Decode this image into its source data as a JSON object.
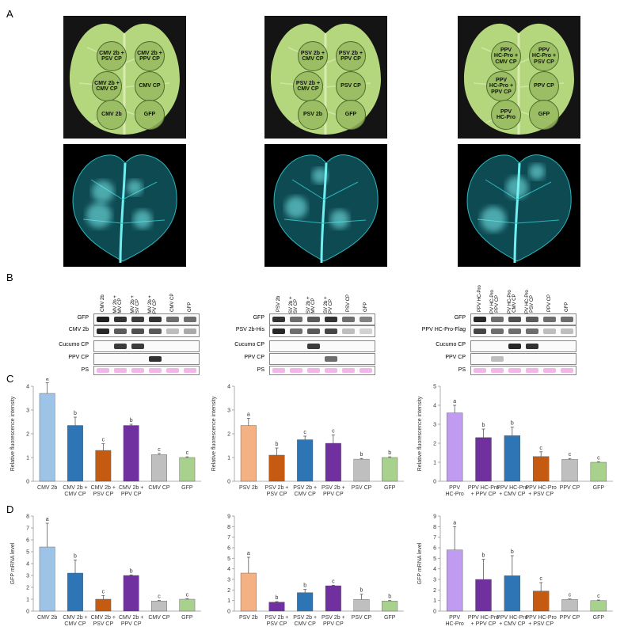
{
  "panels": {
    "A": "A",
    "B": "B",
    "C": "C",
    "D": "D"
  },
  "leaf_sets": [
    {
      "spots": [
        "CMV 2b +\nPSV CP",
        "CMV 2b +\nPPV CP",
        "CMV 2b +\nCMV CP",
        "CMV CP",
        "CMV 2b",
        "GFP"
      ]
    },
    {
      "spots": [
        "PSV 2b +\nCMV CP",
        "PSV 2b +\nPPV CP",
        "PSV 2b +\nCMV CP",
        "PSV CP",
        "PSV 2b",
        "GFP"
      ]
    },
    {
      "spots": [
        "PPV\nHC-Pro +\nCMV CP",
        "PPV\nHC-Pro +\nPSV CP",
        "PPV\nHC-Pro +\nPPV CP",
        "PPV CP",
        "PPV\nHC-Pro",
        "GFP"
      ]
    }
  ],
  "blots": [
    {
      "lanes": [
        "CMV 2b",
        "CMV 2b +\nCMV CP",
        "CMV 2b +\nPSV CP",
        "CMV 2b +\nPPV CP",
        "CMV CP",
        "GFP"
      ],
      "rows": [
        "GFP",
        "CMV 2b",
        "Cucumo CP",
        "PPV CP",
        "PS"
      ]
    },
    {
      "lanes": [
        "PSV 2b",
        "PSV 2b +\nPSV CP",
        "PSV 2b +\nCMV CP",
        "PSV 2b +\nPPV CP",
        "PSV CP",
        "GFP"
      ],
      "rows": [
        "GFP",
        "PSV 2b-His",
        "Cucumo CP",
        "PPV CP",
        "PS"
      ]
    },
    {
      "lanes": [
        "PPV HC-Pro",
        "PPV HC-Pro\n+ PPV CP",
        "PPV HC-Pro\n+ CMV CP",
        "PPV HC-Pro\n+ PSV CP",
        "PPV CP",
        "GFP"
      ],
      "rows": [
        "GFP",
        "PPV HC-Pro-Flag",
        "Cucumo CP",
        "PPV CP",
        "PS"
      ]
    }
  ],
  "colors": {
    "light_blue": "#9dc3e6",
    "blue": "#2e75b6",
    "orange": "#c55a11",
    "purple": "#7030a0",
    "grey": "#bfbfbf",
    "green": "#a9d18e",
    "peach": "#f4b183",
    "lavender": "#c09cf0",
    "ps_band": "#f3b6e8"
  },
  "chart_data": [
    {
      "type": "bar",
      "ylabel": "Relative fluorescence intensity",
      "ylim": [
        0,
        4
      ],
      "yticks": [
        0,
        1,
        2,
        3,
        4
      ],
      "categories": [
        "CMV 2b",
        "CMV 2b +\nCMV CP",
        "CMV 2b +\nPSV CP",
        "CMV 2b +\nPPV CP",
        "CMV CP",
        "GFP"
      ],
      "values": [
        3.7,
        2.35,
        1.3,
        2.35,
        1.12,
        1.0
      ],
      "errors": [
        0.45,
        0.35,
        0.28,
        0.05,
        0.05,
        0.03
      ],
      "letters": [
        "a",
        "b",
        "c",
        "b",
        "c",
        "c"
      ],
      "bar_colors": [
        "#9dc3e6",
        "#2e75b6",
        "#c55a11",
        "#7030a0",
        "#bfbfbf",
        "#a9d18e"
      ]
    },
    {
      "type": "bar",
      "ylabel": "Relative fluorescence intensity",
      "ylim": [
        0,
        4
      ],
      "yticks": [
        0,
        1,
        2,
        3,
        4
      ],
      "categories": [
        "PSV 2b",
        "PSV 2b +\nPSV CP",
        "PSV 2b +\nCMV CP",
        "PSV 2b +\nPPV CP",
        "PSV CP",
        "GFP"
      ],
      "values": [
        2.35,
        1.1,
        1.75,
        1.6,
        0.93,
        1.0
      ],
      "errors": [
        0.3,
        0.3,
        0.15,
        0.35,
        0.03,
        0.03
      ],
      "letters": [
        "a",
        "b",
        "c",
        "c",
        "b",
        "b"
      ],
      "bar_colors": [
        "#f4b183",
        "#c55a11",
        "#2e75b6",
        "#7030a0",
        "#bfbfbf",
        "#a9d18e"
      ]
    },
    {
      "type": "bar",
      "ylabel": "Relative fluorescence intensity",
      "ylim": [
        0,
        5
      ],
      "yticks": [
        0,
        1,
        2,
        3,
        4,
        5
      ],
      "categories": [
        "PPV\nHC-Pro",
        "PPV HC-Pro\n+ PPV CP",
        "PPV HC-Pro\n+ CMV CP",
        "PPV HC-Pro\n+ PSV CP",
        "PPV CP",
        "GFP"
      ],
      "values": [
        3.6,
        2.3,
        2.4,
        1.3,
        1.15,
        1.0
      ],
      "errors": [
        0.4,
        0.45,
        0.45,
        0.25,
        0.05,
        0.03
      ],
      "letters": [
        "a",
        "b",
        "b",
        "c",
        "c",
        "c"
      ],
      "bar_colors": [
        "#c09cf0",
        "#7030a0",
        "#2e75b6",
        "#c55a11",
        "#bfbfbf",
        "#a9d18e"
      ]
    },
    {
      "type": "bar",
      "ylabel": "GFP mRNA level",
      "ylim": [
        0,
        8
      ],
      "yticks": [
        0,
        1,
        2,
        3,
        4,
        5,
        6,
        7,
        8
      ],
      "categories": [
        "CMV 2b",
        "CMV 2b +\nCMV CP",
        "CMV 2b +\nPSV CP",
        "CMV 2b +\nPPV CP",
        "CMV CP",
        "GFP"
      ],
      "values": [
        5.4,
        3.2,
        1.0,
        3.0,
        0.85,
        1.0
      ],
      "errors": [
        2.0,
        1.1,
        0.3,
        0.05,
        0.05,
        0.05
      ],
      "letters": [
        "a",
        "b",
        "c",
        "b",
        "c",
        "c"
      ],
      "bar_colors": [
        "#9dc3e6",
        "#2e75b6",
        "#c55a11",
        "#7030a0",
        "#bfbfbf",
        "#a9d18e"
      ]
    },
    {
      "type": "bar",
      "ylabel": "",
      "ylim": [
        0,
        9
      ],
      "yticks": [
        0,
        1,
        2,
        3,
        4,
        5,
        6,
        7,
        8,
        9
      ],
      "categories": [
        "PSV 2b",
        "PSV 2b +\nPSV CP",
        "PSV 2b +\nCMV CP",
        "PSV 2b +\nPPV CP",
        "PSV CP",
        "GFP"
      ],
      "values": [
        3.6,
        0.85,
        1.75,
        2.4,
        1.1,
        0.95
      ],
      "errors": [
        1.5,
        0.05,
        0.3,
        0.05,
        0.5,
        0.05
      ],
      "letters": [
        "a",
        "b",
        "b",
        "c",
        "b",
        "b"
      ],
      "bar_colors": [
        "#f4b183",
        "#7030a0",
        "#2e75b6",
        "#7030a0",
        "#bfbfbf",
        "#a9d18e"
      ]
    },
    {
      "type": "bar",
      "ylabel": "GFP mRNA level",
      "ylim": [
        0,
        9
      ],
      "yticks": [
        0,
        1,
        2,
        3,
        4,
        5,
        6,
        7,
        8,
        9
      ],
      "categories": [
        "PPV\nHC-Pro",
        "PPV HC-Pro\n+ PPV CP",
        "PPV HC-Pro\n+ CMV CP",
        "PPV HC-Pro\n+ PSV CP",
        "PPV CP",
        "GFP"
      ],
      "values": [
        5.8,
        3.0,
        3.35,
        1.9,
        1.1,
        1.0
      ],
      "errors": [
        2.2,
        1.9,
        1.9,
        0.8,
        0.05,
        0.05
      ],
      "letters": [
        "a",
        "b",
        "b",
        "c",
        "c",
        "c"
      ],
      "bar_colors": [
        "#c09cf0",
        "#7030a0",
        "#2e75b6",
        "#c55a11",
        "#bfbfbf",
        "#a9d18e"
      ]
    }
  ]
}
